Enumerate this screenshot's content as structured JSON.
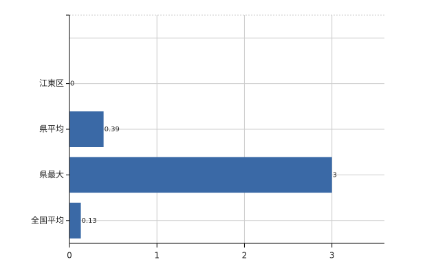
{
  "chart_data": {
    "type": "hbar",
    "categories": [
      null,
      "江東区",
      "県平均",
      "県最大",
      "全国平均"
    ],
    "values": [
      null,
      0,
      0.39,
      3,
      0.13
    ],
    "color": "#3a69a6",
    "xlim": [
      0,
      3.6
    ],
    "xticks": [
      0,
      1,
      2,
      3
    ],
    "grid": true
  }
}
